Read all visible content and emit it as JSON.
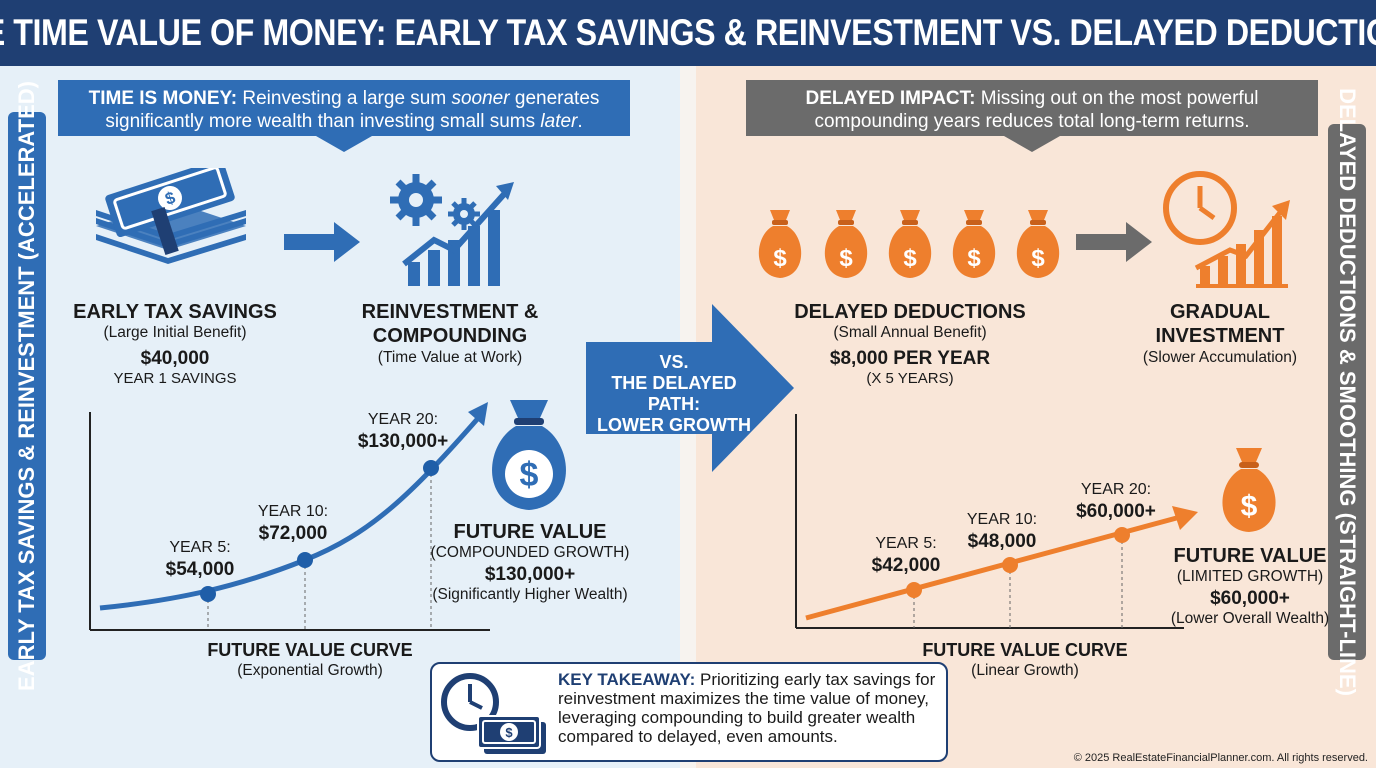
{
  "title": "THE TIME VALUE OF MONEY: EARLY TAX SAVINGS & REINVESTMENT VS. DELAYED DEDUCTIONS",
  "colors": {
    "navy": "#1f3f73",
    "blue": "#2f6db5",
    "orange": "#ee7f2d",
    "gray": "#6b6b6b"
  },
  "left": {
    "side_label": "EARLY TAX SAVINGS & REINVESTMENT (ACCELERATED)",
    "banner": {
      "bold": "TIME IS MONEY:",
      "text1": " Reinvesting a large sum ",
      "em1": "sooner",
      "text2": " generates",
      "line2a": "significantly more wealth than investing small sums ",
      "em2": "later",
      "line2b": "."
    },
    "step1": {
      "title": "EARLY TAX SAVINGS",
      "subtitle": "(Large Initial Benefit)",
      "amount": "$40,000",
      "note": "YEAR 1 SAVINGS"
    },
    "step2": {
      "title1": "REINVESTMENT &",
      "title2": "COMPOUNDING",
      "subtitle": "(Time Value at Work)"
    },
    "points": [
      {
        "year": "YEAR 5:",
        "value": "$54,000"
      },
      {
        "year": "YEAR 10:",
        "value": "$72,000"
      },
      {
        "year": "YEAR 20:",
        "value": "$130,000+"
      }
    ],
    "curve_title": "FUTURE VALUE CURVE",
    "curve_subtitle": "(Exponential Growth)",
    "future": {
      "title": "FUTURE VALUE",
      "subtitle": "(COMPOUNDED GROWTH)",
      "amount": "$130,000+",
      "note": "(Significantly Higher Wealth)"
    }
  },
  "vs": {
    "line1": "VS.",
    "line2": "THE DELAYED PATH:",
    "line3": "LOWER GROWTH"
  },
  "right": {
    "side_label": "DELAYED DEDUCTIONS & SMOOTHING (STRAIGHT-LINE)",
    "banner": {
      "bold": "DELAYED IMPACT:",
      "text1": " Missing out on the most powerful",
      "line2": "compounding years reduces total long-term returns."
    },
    "step1": {
      "title": "DELAYED DEDUCTIONS",
      "subtitle": "(Small Annual Benefit)",
      "amount": "$8,000 PER YEAR",
      "note": "(X 5 YEARS)"
    },
    "step2": {
      "title": "GRADUAL INVESTMENT",
      "subtitle": "(Slower Accumulation)"
    },
    "points": [
      {
        "year": "YEAR 5:",
        "value": "$42,000"
      },
      {
        "year": "YEAR 10:",
        "value": "$48,000"
      },
      {
        "year": "YEAR 20:",
        "value": "$60,000+"
      }
    ],
    "curve_title": "FUTURE VALUE CURVE",
    "curve_subtitle": "(Linear Growth)",
    "future": {
      "title": "FUTURE VALUE",
      "subtitle": "(LIMITED GROWTH)",
      "amount": "$60,000+",
      "note": "(Lower Overall Wealth)"
    }
  },
  "takeaway": {
    "bold": "KEY TAKEAWAY:",
    "text": " Prioritizing early tax savings for reinvestment maximizes the time value of money, leveraging compounding to build greater wealth compared to delayed, even amounts."
  },
  "footer": "© 2025 RealEstateFinancialPlanner.com. All rights reserved."
}
